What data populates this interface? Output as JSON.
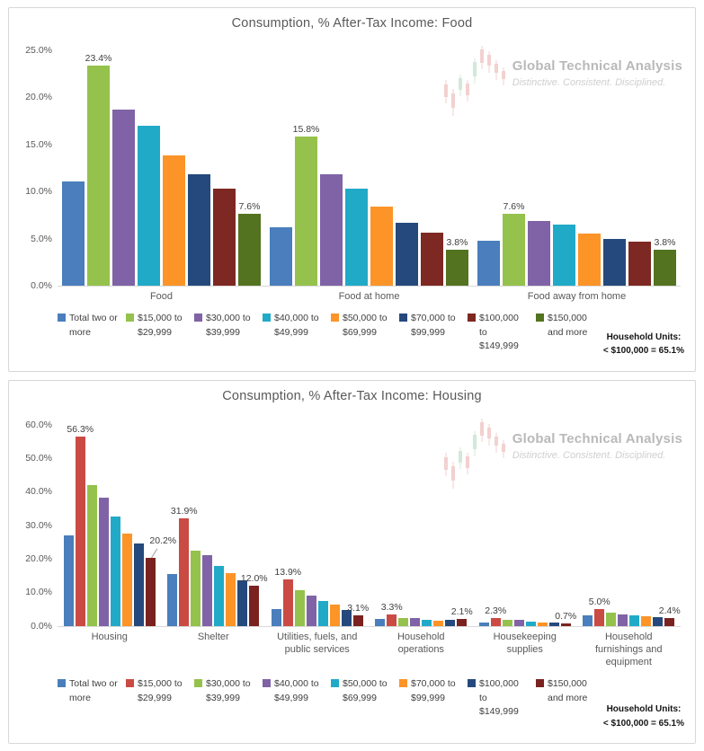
{
  "watermark": {
    "line1": "Global Technical Analysis",
    "line2": "Distinctive. Consistent.  Disciplined."
  },
  "note": {
    "line1": "Household Units:",
    "line2": "< $100,000 = 65.1%"
  },
  "chart_data": [
    {
      "type": "bar",
      "title": "Consumption, % After-Tax Income: Food",
      "categories": [
        "Food",
        "Food at home",
        "Food away from home"
      ],
      "series": [
        {
          "name": "Total two or more",
          "color": "#4a7ebc",
          "values": [
            11.1,
            6.2,
            4.8
          ]
        },
        {
          "name": "$15,000 to $29,999",
          "color": "#94c24c",
          "values": [
            23.4,
            15.8,
            7.6
          ]
        },
        {
          "name": "$30,000 to $39,999",
          "color": "#7f63a6",
          "values": [
            18.7,
            11.8,
            6.9
          ]
        },
        {
          "name": "$40,000 to $49,999",
          "color": "#21aac8",
          "values": [
            17.0,
            10.3,
            6.5
          ]
        },
        {
          "name": "$50,000 to $69,999",
          "color": "#fc9428",
          "values": [
            13.8,
            8.4,
            5.5
          ]
        },
        {
          "name": "$70,000 to $99,999",
          "color": "#25497c",
          "values": [
            11.8,
            6.7,
            5.0
          ]
        },
        {
          "name": "$100,000 to $149,999",
          "color": "#7e2823",
          "values": [
            10.3,
            5.6,
            4.7
          ]
        },
        {
          "name": "$150,000 and more",
          "color": "#537320",
          "values": [
            7.6,
            3.8,
            3.8
          ]
        }
      ],
      "labeled_series": [
        1,
        7
      ],
      "ylim": [
        0,
        25
      ],
      "ytick_step": 5,
      "grid": false,
      "legend_position": "bottom"
    },
    {
      "type": "bar",
      "title": "Consumption, % After-Tax Income: Housing",
      "categories": [
        "Housing",
        "Shelter",
        "Utilities, fuels, and public services",
        "Household operations",
        "Housekeeping supplies",
        "Household furnishings and equipment"
      ],
      "series": [
        {
          "name": "Total two or more",
          "color": "#4a7ebc",
          "values": [
            26.8,
            15.3,
            5.0,
            1.9,
            0.9,
            3.0
          ]
        },
        {
          "name": "$15,000 to $29,999",
          "color": "#ca4a44",
          "values": [
            56.3,
            31.9,
            13.9,
            3.3,
            2.3,
            5.0
          ]
        },
        {
          "name": "$30,000 to $39,999",
          "color": "#94c24c",
          "values": [
            41.8,
            22.4,
            10.6,
            2.2,
            1.8,
            4.0
          ]
        },
        {
          "name": "$40,000 to $49,999",
          "color": "#7f63a6",
          "values": [
            38.3,
            21.0,
            8.9,
            2.4,
            1.8,
            3.4
          ]
        },
        {
          "name": "$50,000 to $69,999",
          "color": "#21aac8",
          "values": [
            32.5,
            17.9,
            7.3,
            1.7,
            1.1,
            3.1
          ]
        },
        {
          "name": "$70,000 to $99,999",
          "color": "#fc9428",
          "values": [
            27.4,
            15.6,
            6.2,
            1.4,
            0.9,
            2.7
          ]
        },
        {
          "name": "$100,000 to $149,999",
          "color": "#25497c",
          "values": [
            24.4,
            13.6,
            4.8,
            1.8,
            1.0,
            2.6
          ]
        },
        {
          "name": "$150,000 and more",
          "color": "#7a2220",
          "values": [
            20.2,
            12.0,
            3.1,
            2.1,
            0.7,
            2.4
          ]
        }
      ],
      "labeled_series": [
        1,
        7
      ],
      "leader_label": {
        "series": 7,
        "category": 0
      },
      "ylim": [
        0,
        60
      ],
      "ytick_step": 10,
      "grid": false,
      "legend_position": "bottom"
    }
  ]
}
